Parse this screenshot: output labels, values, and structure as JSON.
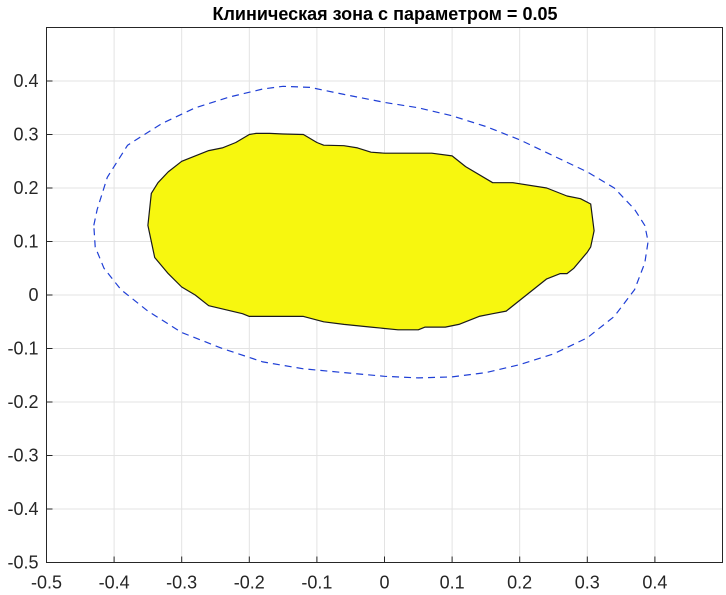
{
  "chart_data": {
    "type": "area",
    "title": "Клиническая зона с параметром = 0.05",
    "xlabel": "",
    "ylabel": "",
    "xlim": [
      -0.5,
      0.5
    ],
    "ylim": [
      -0.5,
      0.5
    ],
    "grid": true,
    "x_ticks": [
      -0.5,
      -0.4,
      -0.3,
      -0.2,
      -0.1,
      0,
      0.1,
      0.2,
      0.3,
      0.4
    ],
    "x_tick_labels": [
      "-0.5",
      "-0.4",
      "-0.3",
      "-0.2",
      "-0.1",
      "0",
      "0.1",
      "0.2",
      "0.3",
      "0.4"
    ],
    "y_ticks": [
      -0.5,
      -0.4,
      -0.3,
      -0.2,
      -0.1,
      0,
      0.1,
      0.2,
      0.3,
      0.4
    ],
    "y_tick_labels": [
      "-0.5",
      "-0.4",
      "-0.3",
      "-0.2",
      "-0.1",
      "0",
      "0.1",
      "0.2",
      "0.3",
      "0.4"
    ],
    "series": [
      {
        "style": "filled-region",
        "fill_color": "#f7f70f",
        "edge_color": "#1a1a1a",
        "x": [
          -0.35,
          -0.345,
          -0.335,
          -0.32,
          -0.3,
          -0.28,
          -0.26,
          -0.24,
          -0.22,
          -0.2,
          -0.19,
          -0.17,
          -0.15,
          -0.12,
          -0.1,
          -0.09,
          -0.06,
          -0.04,
          -0.02,
          0.0,
          0.04,
          0.05,
          0.07,
          0.1,
          0.12,
          0.16,
          0.19,
          0.24,
          0.27,
          0.29,
          0.305,
          0.31,
          0.305,
          0.3,
          0.28,
          0.27,
          0.26,
          0.24,
          0.22,
          0.2,
          0.18,
          0.16,
          0.14,
          0.11,
          0.09,
          0.06,
          0.05,
          0.02,
          -0.02,
          -0.06,
          -0.09,
          -0.12,
          -0.16,
          -0.2,
          -0.21,
          -0.26,
          -0.28,
          -0.3,
          -0.32,
          -0.34,
          -0.35
        ],
        "y": [
          0.13,
          0.19,
          0.21,
          0.23,
          0.25,
          0.26,
          0.27,
          0.275,
          0.285,
          0.3,
          0.302,
          0.302,
          0.301,
          0.3,
          0.285,
          0.28,
          0.279,
          0.275,
          0.267,
          0.265,
          0.265,
          0.265,
          0.265,
          0.26,
          0.24,
          0.21,
          0.21,
          0.2,
          0.185,
          0.18,
          0.17,
          0.12,
          0.09,
          0.08,
          0.05,
          0.04,
          0.04,
          0.03,
          0.01,
          -0.01,
          -0.03,
          -0.035,
          -0.04,
          -0.055,
          -0.06,
          -0.06,
          -0.065,
          -0.065,
          -0.06,
          -0.055,
          -0.05,
          -0.04,
          -0.04,
          -0.04,
          -0.035,
          -0.02,
          0.0,
          0.015,
          0.04,
          0.07,
          0.13
        ]
      },
      {
        "style": "dashed-line",
        "color": "#1f3fd6",
        "x": [
          -0.43,
          -0.425,
          -0.41,
          -0.38,
          -0.33,
          -0.28,
          -0.23,
          -0.18,
          -0.15,
          -0.11,
          -0.06,
          0.0,
          0.05,
          0.1,
          0.15,
          0.2,
          0.25,
          0.3,
          0.34,
          0.37,
          0.385,
          0.39,
          0.385,
          0.37,
          0.34,
          0.3,
          0.25,
          0.2,
          0.15,
          0.1,
          0.05,
          0.0,
          -0.06,
          -0.12,
          -0.18,
          -0.24,
          -0.3,
          -0.35,
          -0.39,
          -0.415,
          -0.428,
          -0.43
        ],
        "y": [
          0.13,
          0.16,
          0.22,
          0.28,
          0.32,
          0.35,
          0.37,
          0.385,
          0.39,
          0.388,
          0.375,
          0.36,
          0.35,
          0.335,
          0.315,
          0.29,
          0.26,
          0.23,
          0.2,
          0.16,
          0.13,
          0.1,
          0.06,
          0.01,
          -0.04,
          -0.08,
          -0.11,
          -0.13,
          -0.145,
          -0.153,
          -0.155,
          -0.152,
          -0.145,
          -0.138,
          -0.125,
          -0.1,
          -0.07,
          -0.03,
          0.01,
          0.05,
          0.09,
          0.13
        ]
      }
    ]
  }
}
